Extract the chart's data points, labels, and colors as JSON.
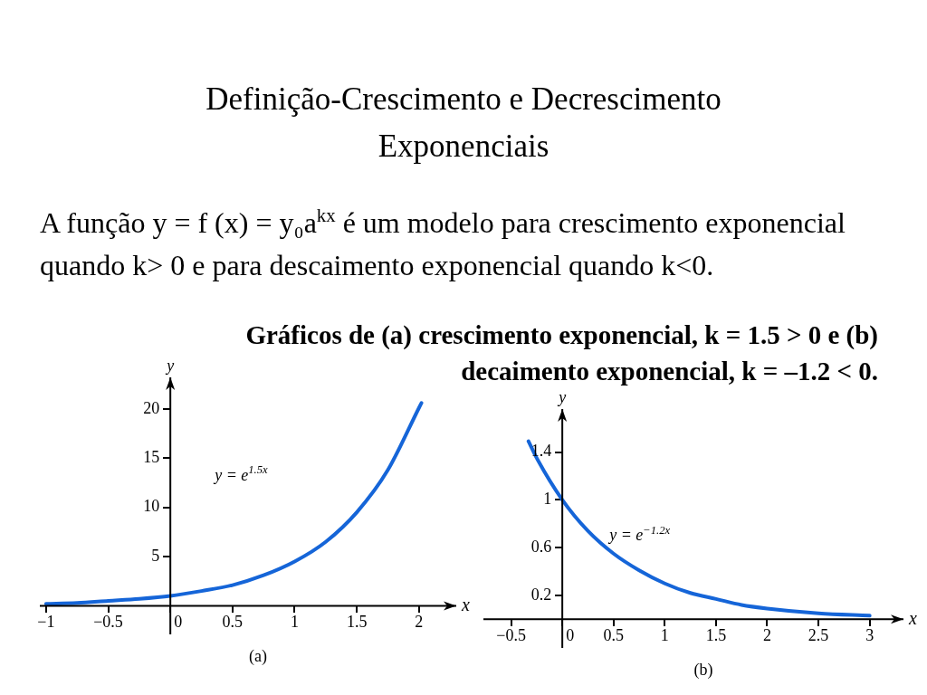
{
  "chart_data": [
    {
      "type": "line",
      "title": "Definição-Crescimento e Decrescimento Exponenciais",
      "subtitle": "A função  y = f (x) = y₀a$^{kx}$  é um modelo para crescimento exponencial quando k> 0 e para descaimento exponencial quando k<0.",
      "xlabel": "x",
      "ylabel": "y",
      "annotations": [
        "Gráficos de (a) crescimento exponencial, k = 1.5 > 0 e (b) decaimento exponencial, k = –1.2 < 0.",
        "y = e$^{1.5x}$",
        "(a)"
      ],
      "series": [
        {
          "color": "#1565d8",
          "x": [
            -1,
            -0.75,
            -0.5,
            -0.25,
            0,
            0.25,
            0.5,
            0.75,
            1,
            1.25,
            1.5,
            1.75,
            2,
            2.02
          ],
          "values": [
            0.2,
            0.3,
            0.5,
            0.7,
            1,
            1.5,
            2.1,
            3.1,
            4.5,
            6.5,
            9.5,
            13.8,
            20.1,
            20.6
          ]
        }
      ],
      "xlim": [
        -1.05,
        2.3
      ],
      "ylim": [
        -2.9,
        23.2
      ],
      "xticks": [
        -1,
        -0.5,
        0,
        0.5,
        1,
        1.5,
        2
      ],
      "yticks": [
        5,
        10,
        15,
        20
      ],
      "grid": false,
      "legend": false
    },
    {
      "type": "line",
      "xlabel": "x",
      "ylabel": "y",
      "annotations": [
        "y = e$^{−1.2x}$",
        "(b)"
      ],
      "series": [
        {
          "color": "#1565d8",
          "x": [
            -0.33,
            -0.25,
            0,
            0.25,
            0.5,
            0.75,
            1,
            1.25,
            1.5,
            1.75,
            2,
            2.5,
            3
          ],
          "values": [
            1.49,
            1.35,
            1,
            0.74,
            0.55,
            0.41,
            0.3,
            0.22,
            0.17,
            0.12,
            0.09,
            0.05,
            0.03
          ]
        }
      ],
      "xlim": [
        -0.77,
        3.33
      ],
      "ylim": [
        -0.24,
        1.76
      ],
      "xticks": [
        -0.5,
        0,
        0.5,
        1,
        1.5,
        2,
        2.5,
        3
      ],
      "yticks": [
        0.2,
        0.6,
        1,
        1.4
      ],
      "grid": false,
      "legend": false
    }
  ]
}
